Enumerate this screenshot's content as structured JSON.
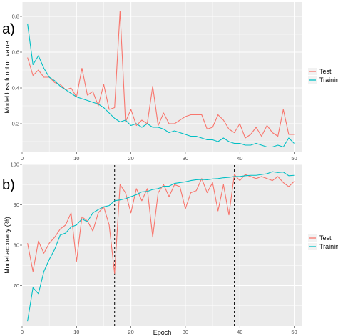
{
  "colors": {
    "test": "#f8766d",
    "training": "#00bfc4",
    "panel_bg": "#ebebeb",
    "grid": "#ffffff",
    "marker": "#000000"
  },
  "chart_data": [
    {
      "type": "line",
      "panel_label": "a)",
      "xlabel": "",
      "ylabel": "Model loss function value",
      "xlim": [
        0,
        51.5
      ],
      "ylim": [
        0.04,
        0.88
      ],
      "xticks": [
        0,
        10,
        20,
        30,
        40,
        50
      ],
      "yticks": [
        0.2,
        0.4,
        0.6,
        0.8
      ],
      "ytick_labels": [
        "0.2",
        "0.4",
        "0.6",
        "0.8"
      ],
      "legend_position": "right",
      "x": [
        1,
        2,
        3,
        4,
        5,
        6,
        7,
        8,
        9,
        10,
        11,
        12,
        13,
        14,
        15,
        16,
        17,
        18,
        19,
        20,
        21,
        22,
        23,
        24,
        25,
        26,
        27,
        28,
        29,
        30,
        31,
        32,
        33,
        34,
        35,
        36,
        37,
        38,
        39,
        40,
        41,
        42,
        43,
        44,
        45,
        46,
        47,
        48,
        49,
        50
      ],
      "series": [
        {
          "name": "Test",
          "color": "#f8766d",
          "values": [
            0.57,
            0.47,
            0.5,
            0.46,
            0.46,
            0.43,
            0.42,
            0.39,
            0.4,
            0.35,
            0.51,
            0.36,
            0.38,
            0.3,
            0.42,
            0.28,
            0.29,
            0.83,
            0.21,
            0.28,
            0.19,
            0.22,
            0.2,
            0.41,
            0.19,
            0.26,
            0.2,
            0.2,
            0.22,
            0.24,
            0.25,
            0.25,
            0.25,
            0.17,
            0.18,
            0.25,
            0.22,
            0.17,
            0.15,
            0.2,
            0.12,
            0.14,
            0.18,
            0.13,
            0.19,
            0.15,
            0.13,
            0.28,
            0.14,
            0.14
          ]
        },
        {
          "name": "Training",
          "color": "#00bfc4",
          "values": [
            0.76,
            0.53,
            0.58,
            0.51,
            0.46,
            0.44,
            0.41,
            0.39,
            0.37,
            0.35,
            0.34,
            0.33,
            0.32,
            0.31,
            0.29,
            0.26,
            0.23,
            0.21,
            0.22,
            0.19,
            0.2,
            0.18,
            0.2,
            0.18,
            0.18,
            0.17,
            0.15,
            0.16,
            0.15,
            0.14,
            0.13,
            0.13,
            0.12,
            0.11,
            0.11,
            0.1,
            0.12,
            0.1,
            0.09,
            0.09,
            0.08,
            0.08,
            0.09,
            0.08,
            0.07,
            0.07,
            0.08,
            0.07,
            0.12,
            0.09
          ]
        }
      ]
    },
    {
      "type": "line",
      "panel_label": "b)",
      "xlabel": "Epoch",
      "ylabel": "Model accuracy (%)",
      "xlim": [
        0,
        51.5
      ],
      "ylim": [
        60,
        100
      ],
      "xticks": [
        0,
        10,
        20,
        30,
        40,
        50
      ],
      "yticks": [
        70,
        80,
        90,
        100
      ],
      "ytick_labels": [
        "70",
        "80",
        "90",
        "100"
      ],
      "legend_position": "right",
      "vlines": [
        17,
        39
      ],
      "x": [
        1,
        2,
        3,
        4,
        5,
        6,
        7,
        8,
        9,
        10,
        11,
        12,
        13,
        14,
        15,
        16,
        17,
        18,
        19,
        20,
        21,
        22,
        23,
        24,
        25,
        26,
        27,
        28,
        29,
        30,
        31,
        32,
        33,
        34,
        35,
        36,
        37,
        38,
        39,
        40,
        41,
        42,
        43,
        44,
        45,
        46,
        47,
        48,
        49,
        50
      ],
      "series": [
        {
          "name": "Test",
          "color": "#f8766d",
          "values": [
            80.5,
            73.5,
            81,
            78,
            80.5,
            82,
            84,
            85,
            88,
            76,
            87,
            86,
            83.5,
            88,
            89.5,
            85,
            73,
            95,
            93,
            88,
            94,
            91,
            94,
            82,
            93,
            95,
            92,
            95,
            94.5,
            89,
            93,
            93.5,
            96.5,
            93,
            95.5,
            88.5,
            95,
            87.5,
            97.5,
            96,
            97.5,
            97,
            96.5,
            97,
            96.5,
            96,
            97,
            95.5,
            94.5,
            95.8
          ]
        },
        {
          "name": "Training",
          "color": "#00bfc4",
          "values": [
            61.2,
            69.5,
            68,
            73.5,
            76.5,
            79,
            82.5,
            83,
            84.5,
            85,
            86.5,
            85.8,
            88,
            88.8,
            89.5,
            89.8,
            91,
            91.2,
            91.5,
            92,
            92.5,
            93.2,
            93.3,
            93.8,
            94,
            94.6,
            94.6,
            95.3,
            95.5,
            95.7,
            96,
            96.2,
            96.3,
            96.2,
            96.4,
            96.5,
            96.7,
            96.8,
            97,
            97,
            97.2,
            97.3,
            97.3,
            97.5,
            97.7,
            98.2,
            98,
            98.1,
            97.2,
            97.3
          ]
        }
      ]
    }
  ]
}
